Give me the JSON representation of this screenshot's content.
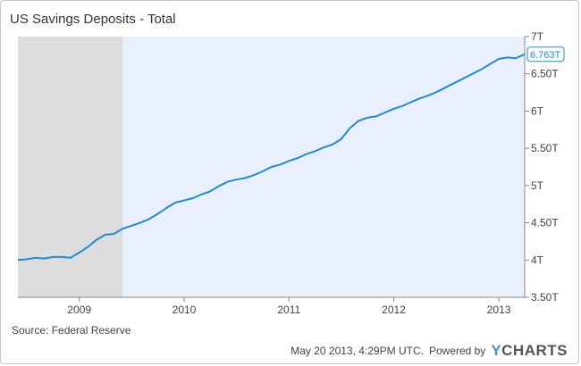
{
  "header": {
    "title": "US Savings Deposits - Total"
  },
  "footer": {
    "source": "Source: Federal Reserve",
    "timestamp": "May 20 2013, 4:29PM UTC.",
    "powered_by": "Powered by",
    "logo_y": "Y",
    "logo_rest": "CHARTS"
  },
  "colors": {
    "line": "#1f8ad6",
    "plot_bg": "#eaf0fb",
    "recession_shade": "#dddddd",
    "axis_text": "#444444"
  },
  "chart_data": {
    "type": "line",
    "title": "US Savings Deposits - Total",
    "xlabel": "",
    "ylabel": "",
    "ylim": [
      3.5,
      7.0
    ],
    "xlim": [
      "2008-06-01",
      "2013-04-01"
    ],
    "yticks": [
      {
        "value": 3.5,
        "label": "3.50T"
      },
      {
        "value": 4.0,
        "label": "4T"
      },
      {
        "value": 4.5,
        "label": "4.50T"
      },
      {
        "value": 5.0,
        "label": "5T"
      },
      {
        "value": 5.5,
        "label": "5.50T"
      },
      {
        "value": 6.0,
        "label": "6T"
      },
      {
        "value": 6.5,
        "label": "6.50T"
      },
      {
        "value": 7.0,
        "label": "7T"
      }
    ],
    "xticks": [
      {
        "date": "2009-01-01",
        "label": "2009"
      },
      {
        "date": "2010-01-01",
        "label": "2010"
      },
      {
        "date": "2011-01-01",
        "label": "2011"
      },
      {
        "date": "2012-01-01",
        "label": "2012"
      },
      {
        "date": "2013-01-01",
        "label": "2013"
      }
    ],
    "recession_shade": {
      "start": "2008-06-01",
      "end": "2009-06-01"
    },
    "last_value_label": "6.763T",
    "grid": false,
    "series": [
      {
        "values": [
          [
            "2008-06-01",
            4.0
          ],
          [
            "2008-07-01",
            4.01
          ],
          [
            "2008-08-01",
            4.03
          ],
          [
            "2008-09-01",
            4.02
          ],
          [
            "2008-10-01",
            4.04
          ],
          [
            "2008-11-01",
            4.04
          ],
          [
            "2008-12-01",
            4.03
          ],
          [
            "2009-01-01",
            4.1
          ],
          [
            "2009-02-01",
            4.18
          ],
          [
            "2009-03-01",
            4.27
          ],
          [
            "2009-04-01",
            4.34
          ],
          [
            "2009-05-01",
            4.35
          ],
          [
            "2009-06-01",
            4.42
          ],
          [
            "2009-07-01",
            4.46
          ],
          [
            "2009-08-01",
            4.5
          ],
          [
            "2009-09-01",
            4.55
          ],
          [
            "2009-10-01",
            4.62
          ],
          [
            "2009-11-01",
            4.7
          ],
          [
            "2009-12-01",
            4.77
          ],
          [
            "2010-01-01",
            4.8
          ],
          [
            "2010-02-01",
            4.83
          ],
          [
            "2010-03-01",
            4.88
          ],
          [
            "2010-04-01",
            4.92
          ],
          [
            "2010-05-01",
            4.99
          ],
          [
            "2010-06-01",
            5.05
          ],
          [
            "2010-07-01",
            5.08
          ],
          [
            "2010-08-01",
            5.1
          ],
          [
            "2010-09-01",
            5.14
          ],
          [
            "2010-10-01",
            5.19
          ],
          [
            "2010-11-01",
            5.25
          ],
          [
            "2010-12-01",
            5.28
          ],
          [
            "2011-01-01",
            5.33
          ],
          [
            "2011-02-01",
            5.37
          ],
          [
            "2011-03-01",
            5.42
          ],
          [
            "2011-04-01",
            5.46
          ],
          [
            "2011-05-01",
            5.51
          ],
          [
            "2011-06-01",
            5.55
          ],
          [
            "2011-07-01",
            5.62
          ],
          [
            "2011-08-01",
            5.77
          ],
          [
            "2011-09-01",
            5.87
          ],
          [
            "2011-10-01",
            5.91
          ],
          [
            "2011-11-01",
            5.93
          ],
          [
            "2011-12-01",
            5.98
          ],
          [
            "2012-01-01",
            6.03
          ],
          [
            "2012-02-01",
            6.07
          ],
          [
            "2012-03-01",
            6.12
          ],
          [
            "2012-04-01",
            6.17
          ],
          [
            "2012-05-01",
            6.21
          ],
          [
            "2012-06-01",
            6.26
          ],
          [
            "2012-07-01",
            6.32
          ],
          [
            "2012-08-01",
            6.38
          ],
          [
            "2012-09-01",
            6.44
          ],
          [
            "2012-10-01",
            6.5
          ],
          [
            "2012-11-01",
            6.56
          ],
          [
            "2012-12-01",
            6.63
          ],
          [
            "2013-01-01",
            6.7
          ],
          [
            "2013-02-01",
            6.72
          ],
          [
            "2013-03-01",
            6.71
          ],
          [
            "2013-04-01",
            6.763
          ]
        ]
      }
    ]
  }
}
